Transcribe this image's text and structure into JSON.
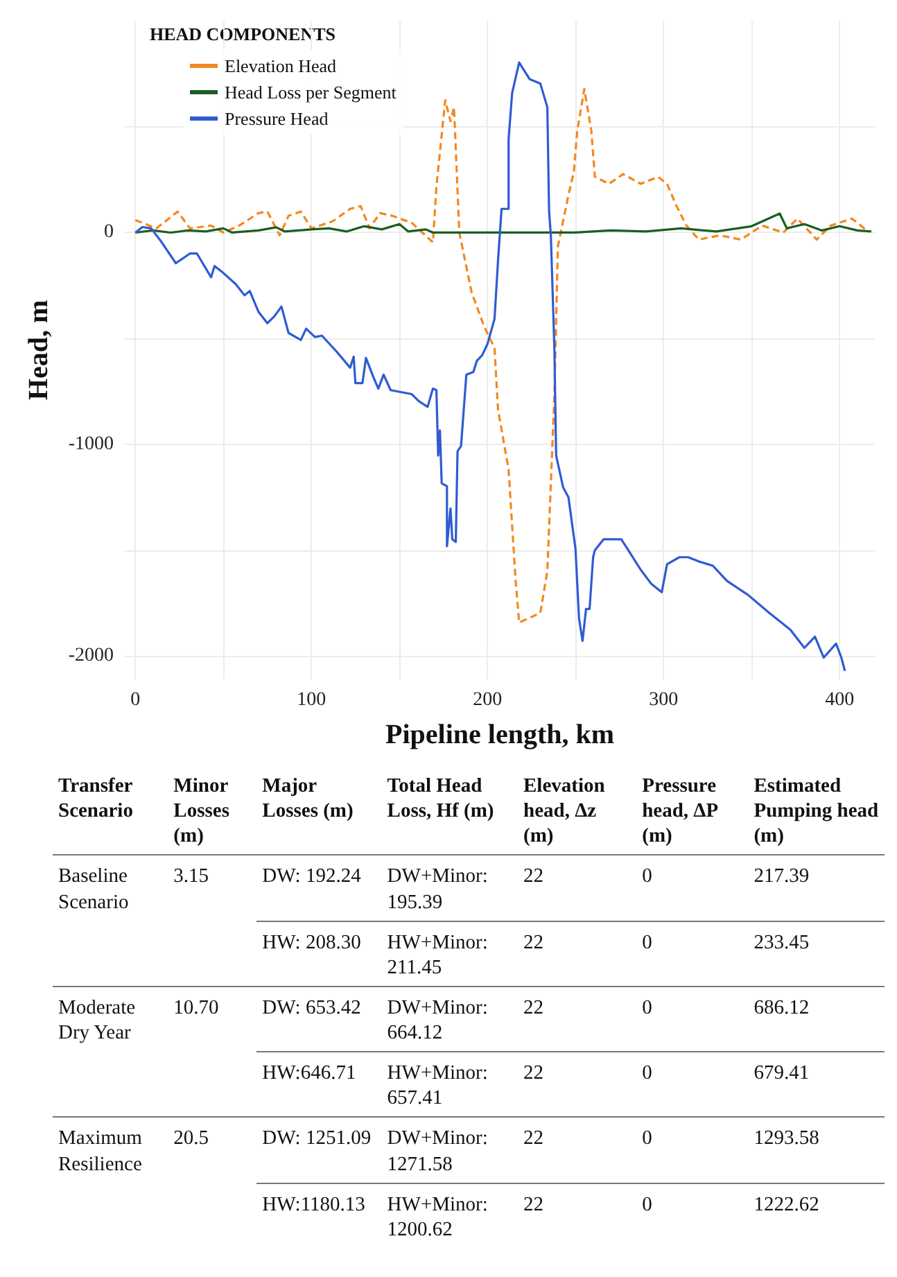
{
  "chart_data": [
    {
      "type": "line",
      "xlabel": "Pipeline length, km",
      "ylabel": "Head, m",
      "legend_title": "HEAD COMPONENTS",
      "legend": "top left",
      "marker": "none",
      "grid": true,
      "xlim": [
        -6,
        420
      ],
      "xticks": [
        0,
        {
          "value": 50,
          "label": null
        },
        100,
        {
          "value": 150,
          "label": null
        },
        200,
        {
          "value": 250,
          "label": null
        },
        300,
        {
          "value": 350,
          "label": null
        },
        400
      ],
      "ylim": [
        -2110,
        1000
      ],
      "yticks": [
        {
          "value": 500,
          "label": null
        },
        0,
        {
          "value": -500,
          "label": null
        },
        -1000,
        {
          "value": -1500,
          "label": null
        },
        -2000
      ],
      "series": [
        {
          "name": "Elevation Head",
          "color": "#f5871f",
          "line_style": "dashed",
          "x": [
            0,
            12,
            24,
            31,
            43,
            50,
            59,
            70,
            75,
            82,
            87,
            94,
            100,
            112,
            122,
            128,
            133,
            139,
            146,
            157,
            169,
            171,
            176,
            179,
            181,
            184,
            191,
            198,
            204,
            206,
            212,
            216,
            218,
            230,
            234,
            238,
            240,
            246,
            249,
            251,
            255,
            259,
            261,
            269,
            277,
            287,
            297,
            302,
            307,
            313,
            320,
            332,
            344,
            356,
            368,
            376,
            387,
            395,
            407,
            415
          ],
          "values": [
            59,
            20,
            99,
            20,
            33,
            0,
            33,
            92,
            99,
            -13,
            79,
            99,
            20,
            53,
            112,
            125,
            20,
            92,
            79,
            46,
            -46,
            217,
            625,
            526,
            592,
            0,
            -283,
            -441,
            -546,
            -836,
            -1119,
            -1645,
            -1842,
            -1796,
            -1599,
            -770,
            -66,
            178,
            283,
            480,
            678,
            480,
            263,
            230,
            276,
            230,
            263,
            230,
            132,
            33,
            -33,
            -13,
            -33,
            33,
            0,
            66,
            -33,
            33,
            66,
            13
          ]
        },
        {
          "name": "Head Loss per Segment",
          "color": "#1b5e20",
          "line_style": "solid",
          "x": [
            0,
            10,
            20,
            30,
            40,
            50,
            55,
            70,
            80,
            85,
            100,
            110,
            120,
            130,
            140,
            150,
            155,
            165,
            169,
            250,
            270,
            290,
            310,
            330,
            350,
            366,
            370,
            380,
            390,
            400,
            410,
            418
          ],
          "values": [
            0,
            10,
            0,
            10,
            5,
            20,
            0,
            10,
            25,
            5,
            15,
            20,
            5,
            30,
            15,
            40,
            5,
            15,
            0,
            0,
            10,
            5,
            20,
            5,
            30,
            90,
            20,
            40,
            10,
            30,
            10,
            5
          ]
        },
        {
          "name": "Pressure Head",
          "color": "#2f5bd3",
          "line_style": "solid",
          "x": [
            0,
            4,
            9,
            15,
            23,
            31,
            35,
            43,
            45,
            49,
            57,
            62,
            65,
            70,
            75,
            79,
            83,
            87,
            94,
            97,
            102,
            106,
            114,
            122,
            124,
            125,
            129,
            131,
            135,
            138,
            141,
            145,
            157,
            161,
            166,
            169,
            171,
            172,
            173,
            174,
            177,
            177,
            179,
            180,
            182,
            183,
            185,
            188,
            192,
            194,
            197,
            200,
            204,
            206,
            208,
            212,
            212,
            214,
            218,
            220,
            224,
            230,
            234,
            235,
            236,
            238,
            239,
            243,
            246,
            250,
            252,
            254,
            256,
            258,
            260,
            261,
            266,
            276,
            281,
            287,
            293,
            299,
            302,
            309,
            314,
            320,
            328,
            336,
            348,
            360,
            372,
            380,
            386,
            391,
            398,
            401,
            403
          ],
          "values": [
            0,
            26,
            20,
            -46,
            -145,
            -99,
            -99,
            -211,
            -158,
            -184,
            -243,
            -296,
            -276,
            -375,
            -428,
            -395,
            -349,
            -474,
            -507,
            -454,
            -493,
            -487,
            -559,
            -638,
            -586,
            -711,
            -711,
            -592,
            -678,
            -737,
            -671,
            -744,
            -763,
            -796,
            -823,
            -737,
            -744,
            -1053,
            -934,
            -1184,
            -1198,
            -1481,
            -1303,
            -1448,
            -1461,
            -1033,
            -1007,
            -671,
            -658,
            -605,
            -579,
            -526,
            -408,
            -132,
            112,
            112,
            441,
            658,
            803,
            776,
            724,
            704,
            592,
            99,
            -13,
            -546,
            -1053,
            -1204,
            -1250,
            -1494,
            -1823,
            -1928,
            -1777,
            -1777,
            -1533,
            -1500,
            -1448,
            -1448,
            -1513,
            -1592,
            -1658,
            -1698,
            -1566,
            -1533,
            -1533,
            -1553,
            -1573,
            -1645,
            -1711,
            -1796,
            -1875,
            -1961,
            -1908,
            -2007,
            -1941,
            -2007,
            -2070
          ]
        }
      ]
    },
    {
      "type": "other",
      "categories": [
        "Transfer Scenario",
        "Minor Losses (m)",
        "Major Losses (m)",
        "Total Head Loss, Hf (m)",
        "Elevation head, Δz (m)",
        "Pressure head, ΔP (m)",
        "Estimated Pumping head (m)"
      ],
      "cell_labels": [
        [
          "Baseline Scenario",
          "3.15",
          "DW: 192.24",
          "DW+Minor: 195.39",
          "22",
          "0",
          "217.39"
        ],
        [
          null,
          null,
          "HW: 208.30",
          "HW+Minor: 211.45",
          "22",
          "0",
          "233.45"
        ],
        [
          "Moderate Dry Year",
          "10.70",
          "DW: 653.42",
          "DW+Minor: 664.12",
          "22",
          "0",
          "686.12"
        ],
        [
          null,
          null,
          "HW:646.71",
          "HW+Minor: 657.41",
          "22",
          "0",
          "679.41"
        ],
        [
          "Maximum Resilience",
          "20.5",
          "DW: 1251.09",
          "DW+Minor: 1271.58",
          "22",
          "0",
          "1293.58"
        ],
        [
          null,
          null,
          "HW:1180.13",
          "HW+Minor: 1200.62",
          "22",
          "0",
          "1222.62"
        ]
      ]
    }
  ]
}
